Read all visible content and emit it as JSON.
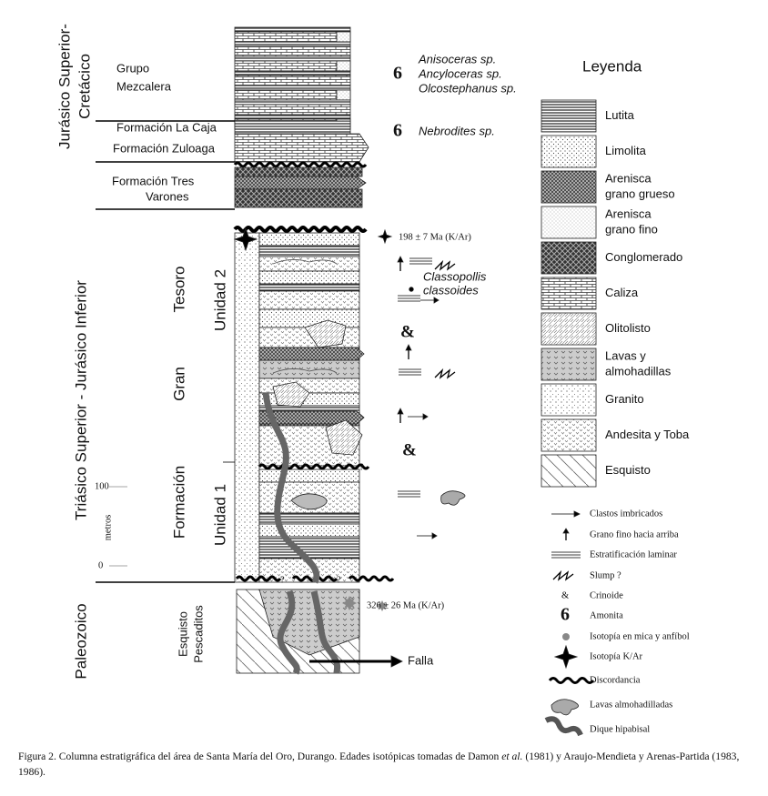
{
  "periods": {
    "upper": [
      "Jurásico Superior-",
      "Cretácico"
    ],
    "middle": "Triásico Superior - Jurásico Inferior",
    "lower": "Paleozoico"
  },
  "units": {
    "mezcalera": [
      "Grupo",
      "Mezcalera"
    ],
    "la_caja": "Formación La Caja",
    "zuloaga": "Formación Zuloaga",
    "tres_varones": [
      "Formación Tres",
      "Varones"
    ],
    "gran_tesoro": [
      "Formación",
      "Gran",
      "Tesoro"
    ],
    "unidad_2": "Unidad 2",
    "unidad_1": "Unidad 1",
    "pescaditos": [
      "Esquisto",
      "Pescaditos"
    ]
  },
  "scale": {
    "top": "100",
    "unit": "metros",
    "bottom": "0"
  },
  "annotations": {
    "ammonite_1": "6",
    "fossils_1": [
      "Anisoceras sp.",
      "Ancyloceras sp.",
      "Olcostephanus sp."
    ],
    "ammonite_2": "6",
    "fossils_2": "Nebrodites sp.",
    "age_1": "198 ± 7 Ma (K/Ar)",
    "pollen": [
      "Classopollis",
      "classoides"
    ],
    "crinoid_1": "&",
    "crinoid_2": "&",
    "query_1": "?",
    "query_2": "?",
    "query_3": "?",
    "age_2": "326  ±  26 Ma (K/Ar)",
    "fault": "Falla"
  },
  "legend": {
    "title": "Leyenda",
    "lithologies": [
      [
        "Lutita"
      ],
      [
        "Limolita"
      ],
      [
        "Arenisca",
        "grano grueso"
      ],
      [
        "Arenisca",
        "grano fino"
      ],
      [
        "Conglomerado"
      ],
      [
        "Caliza"
      ],
      [
        "Olitolisto"
      ],
      [
        "Lavas y",
        "almohadillas"
      ],
      [
        "Granito"
      ],
      [
        "Andesita y Toba"
      ],
      [
        "Esquisto"
      ]
    ],
    "symbols": [
      "Clastos imbricados",
      "Grano fino hacia arriba",
      "Estratificación laminar",
      "Slump  ?",
      "Crinoide",
      "Amonita",
      "Isotopía en mica y anfíbol",
      "Isotopía K/Ar",
      "Discordancia",
      "Lavas almohadilladas",
      "Dique hipabisal"
    ],
    "crinoid_mark": "&",
    "ammonite_mark": "6"
  },
  "caption": {
    "start": "Figura 2. Columna estratigráfica del área de Santa María del Oro, Durango. Edades isotópicas tomadas de Damon",
    "italic": "et al.",
    "end": "(1981) y Araujo-Mendieta y Arenas-Partida (1983, 1986)."
  }
}
